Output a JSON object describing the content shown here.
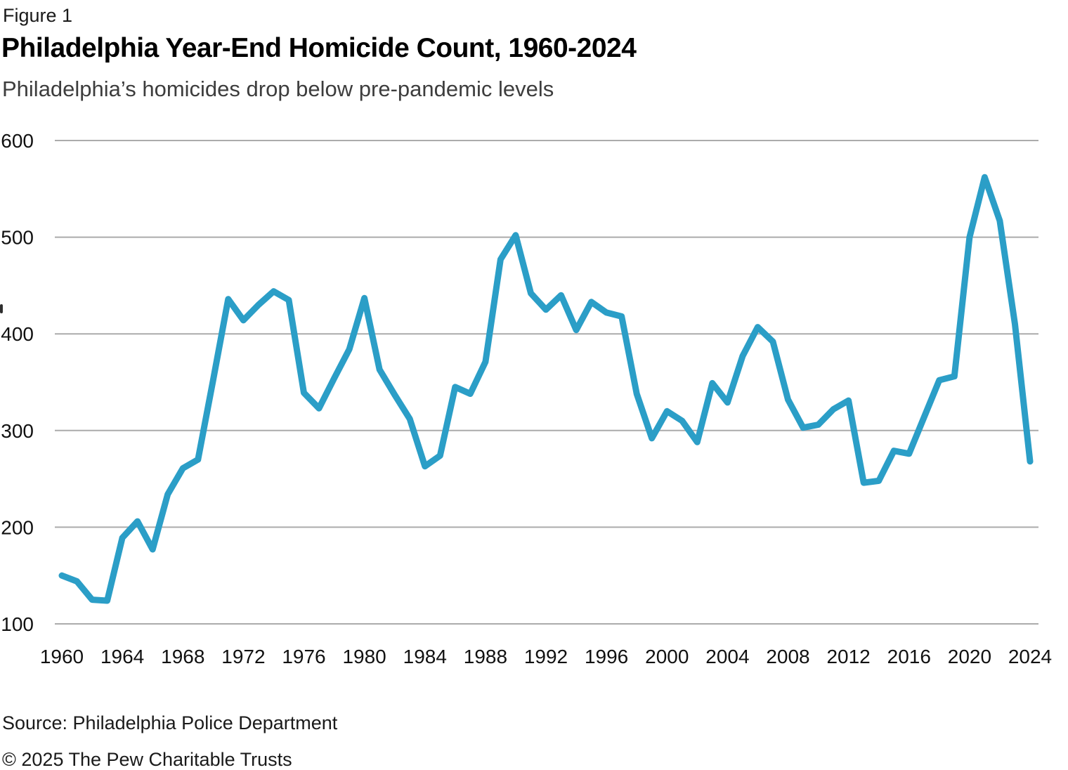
{
  "figure_label": "Figure 1",
  "title": "Philadelphia Year-End Homicide Count, 1960-2024",
  "subtitle": "Philadelphia’s homicides drop below pre-pandemic levels",
  "source": "Source: Philadelphia Police Department",
  "copyright": "© 2025 The Pew Charitable Trusts",
  "chart_data": {
    "type": "line",
    "title": "Philadelphia Year-End Homicide Count, 1960-2024",
    "series_name": "Year-end homicide count",
    "x": [
      1960,
      1961,
      1962,
      1963,
      1964,
      1965,
      1966,
      1967,
      1968,
      1969,
      1970,
      1971,
      1972,
      1973,
      1974,
      1975,
      1976,
      1977,
      1978,
      1979,
      1980,
      1981,
      1982,
      1983,
      1984,
      1985,
      1986,
      1987,
      1988,
      1989,
      1990,
      1991,
      1992,
      1993,
      1994,
      1995,
      1996,
      1997,
      1998,
      1999,
      2000,
      2001,
      2002,
      2003,
      2004,
      2005,
      2006,
      2007,
      2008,
      2009,
      2010,
      2011,
      2012,
      2013,
      2014,
      2015,
      2016,
      2017,
      2018,
      2019,
      2020,
      2021,
      2022,
      2023,
      2024
    ],
    "values": [
      150,
      144,
      125,
      124,
      189,
      206,
      177,
      234,
      261,
      270,
      352,
      436,
      414,
      430,
      444,
      435,
      339,
      323,
      354,
      384,
      437,
      363,
      337,
      312,
      263,
      274,
      345,
      338,
      371,
      477,
      502,
      442,
      425,
      440,
      404,
      433,
      422,
      418,
      338,
      292,
      320,
      310,
      288,
      349,
      329,
      377,
      407,
      392,
      332,
      303,
      306,
      322,
      331,
      246,
      248,
      279,
      276,
      314,
      352,
      356,
      500,
      562,
      517,
      410,
      268
    ],
    "xlabel": "",
    "ylabel": "",
    "ylim": [
      100,
      600
    ],
    "yticks": [
      100,
      200,
      300,
      400,
      500,
      600
    ],
    "xticks": [
      1960,
      1964,
      1968,
      1972,
      1976,
      1980,
      1984,
      1988,
      1992,
      1996,
      2000,
      2004,
      2008,
      2012,
      2016,
      2020,
      2024
    ],
    "grid": "horizontal",
    "legend": "none",
    "line_color": "#2B9EC7",
    "gridline_color": "#ABABAB",
    "text_color": "#111111"
  }
}
